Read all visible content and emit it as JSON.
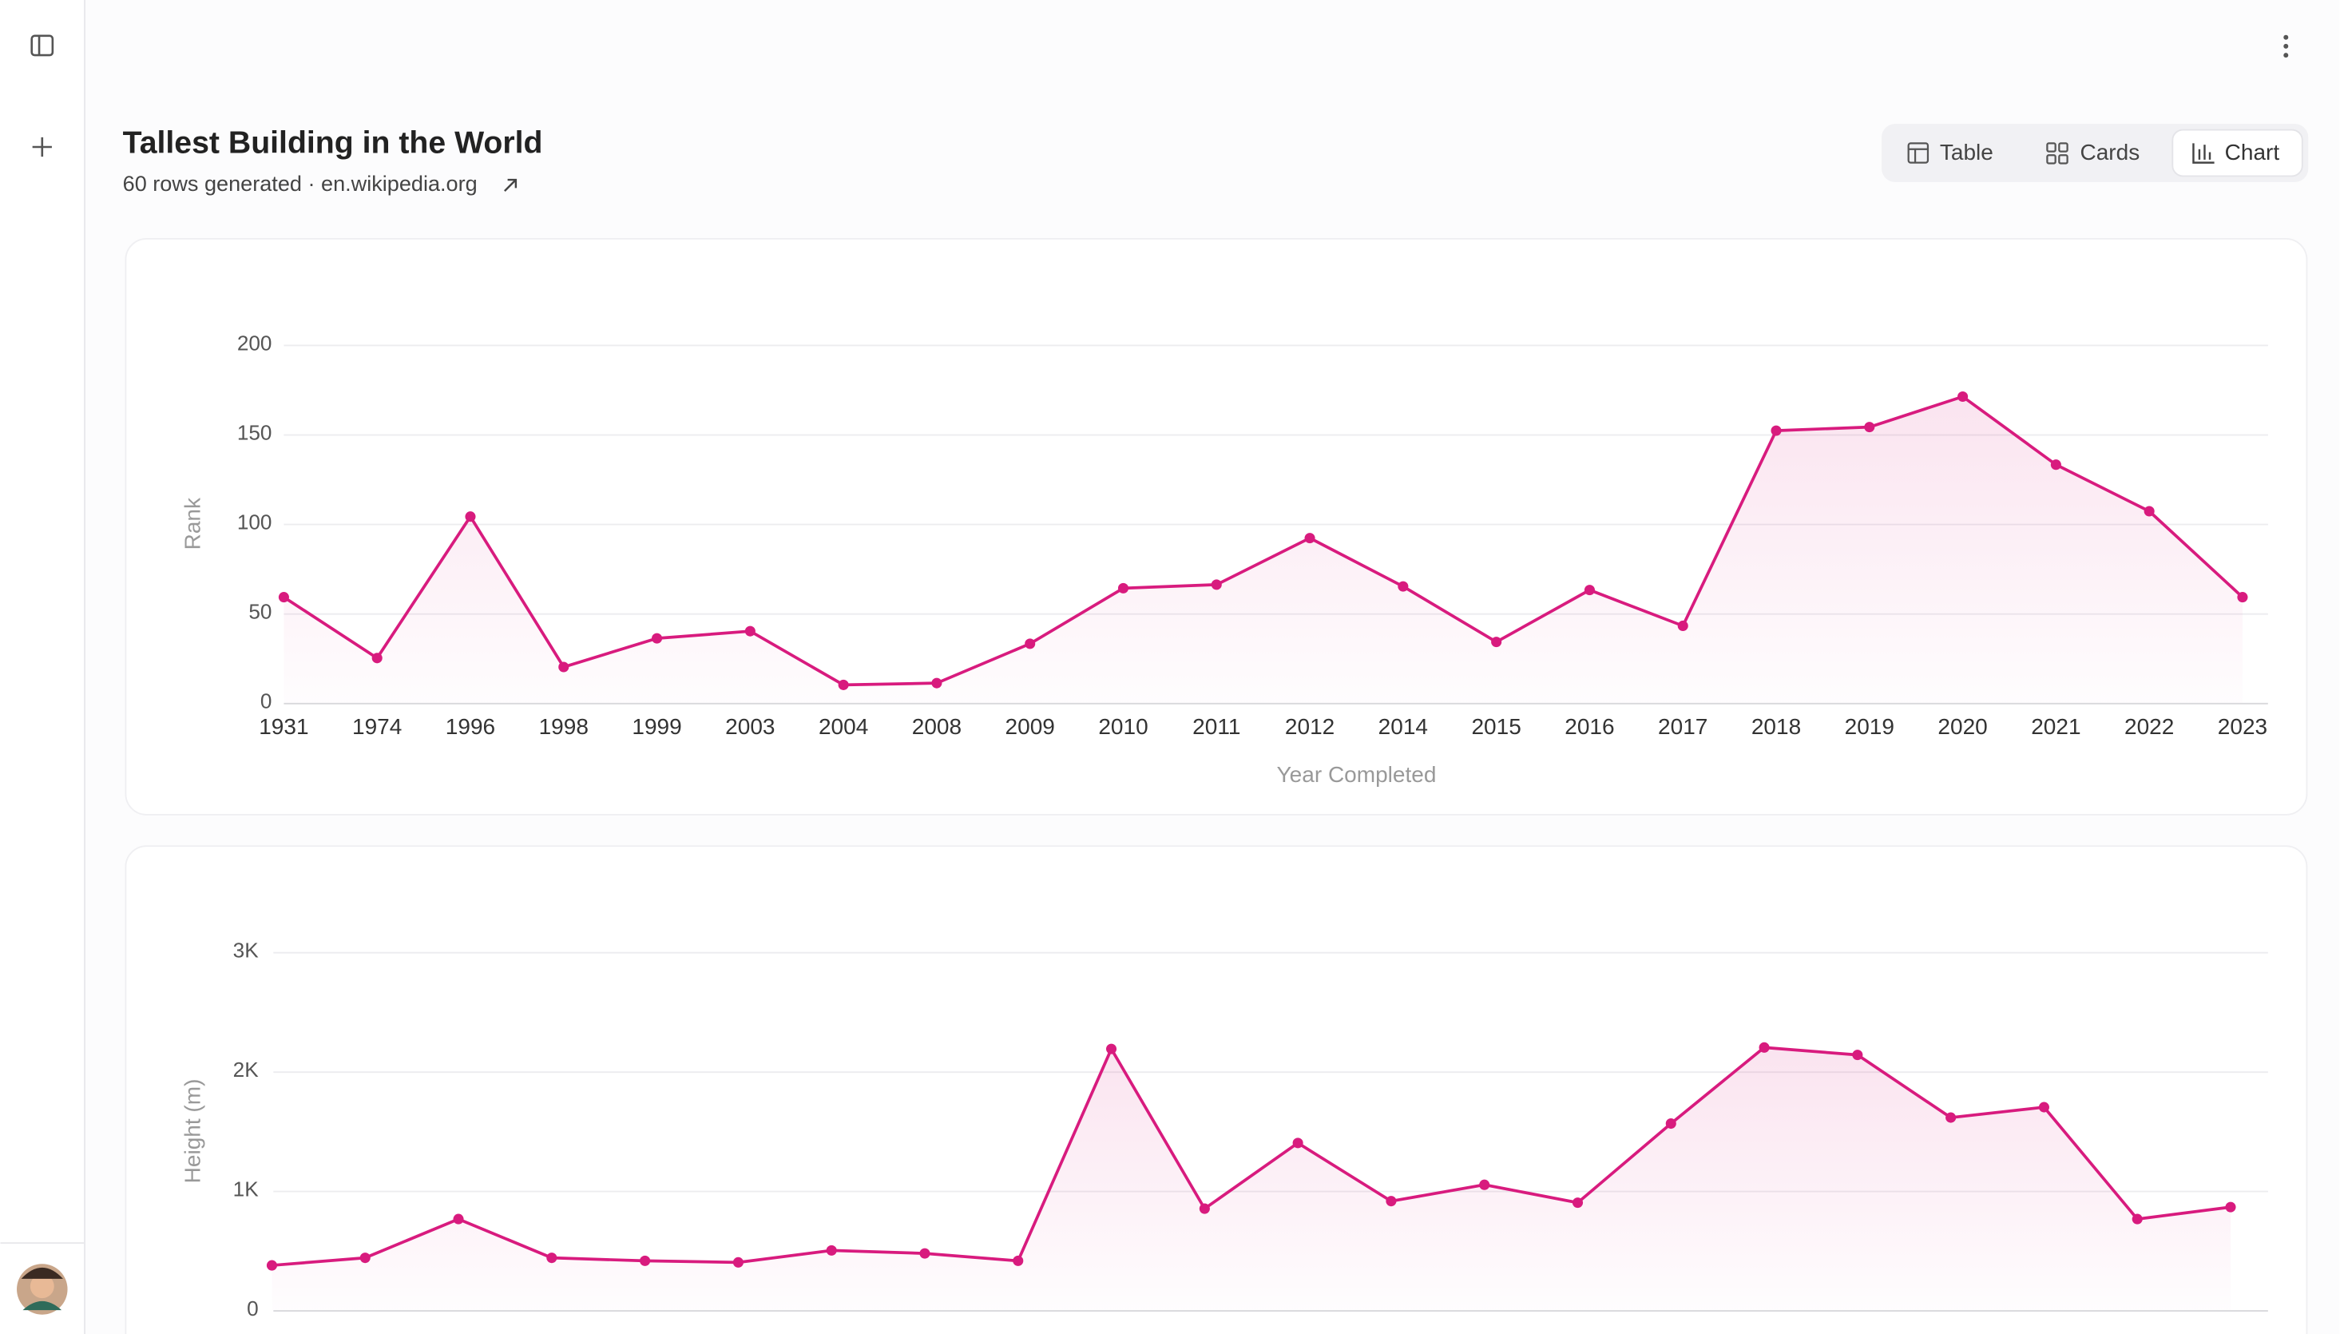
{
  "header": {
    "title": "Tallest Building in the World",
    "subtitle": "60 rows generated · en.wikipedia.org"
  },
  "view_toggle": [
    "Table",
    "Cards",
    "Chart"
  ],
  "chart_data": [
    {
      "type": "line",
      "y_label": "Rank",
      "x_label": "Year Completed",
      "color": "#d81b7e",
      "grid": true,
      "categories": [
        "1931",
        "1974",
        "1996",
        "1998",
        "1999",
        "2003",
        "2004",
        "2008",
        "2009",
        "2010",
        "2011",
        "2012",
        "2014",
        "2015",
        "2016",
        "2017",
        "2018",
        "2019",
        "2020",
        "2021",
        "2022",
        "2023"
      ],
      "values": [
        59,
        25,
        104,
        20,
        36,
        40,
        10,
        11,
        33,
        64,
        66,
        92,
        65,
        34,
        63,
        43,
        152,
        154,
        171,
        133,
        107,
        59
      ],
      "ylim": [
        0,
        200
      ],
      "yticks": [
        0,
        50,
        100,
        150,
        200
      ]
    },
    {
      "type": "line",
      "y_label": "Height (m)",
      "color": "#d81b7e",
      "grid": true,
      "values": [
        375,
        438,
        763,
        438,
        413,
        400,
        500,
        475,
        413,
        2188,
        850,
        1400,
        913,
        1050,
        900,
        1563,
        2200,
        2138,
        1613,
        1700,
        763,
        863
      ],
      "ylim": [
        0,
        3000
      ],
      "yticks": [
        0,
        {
          "value": 1000,
          "label": "1K"
        },
        {
          "value": 2000,
          "label": "2K"
        },
        {
          "value": 3000,
          "label": "3K"
        }
      ]
    }
  ]
}
